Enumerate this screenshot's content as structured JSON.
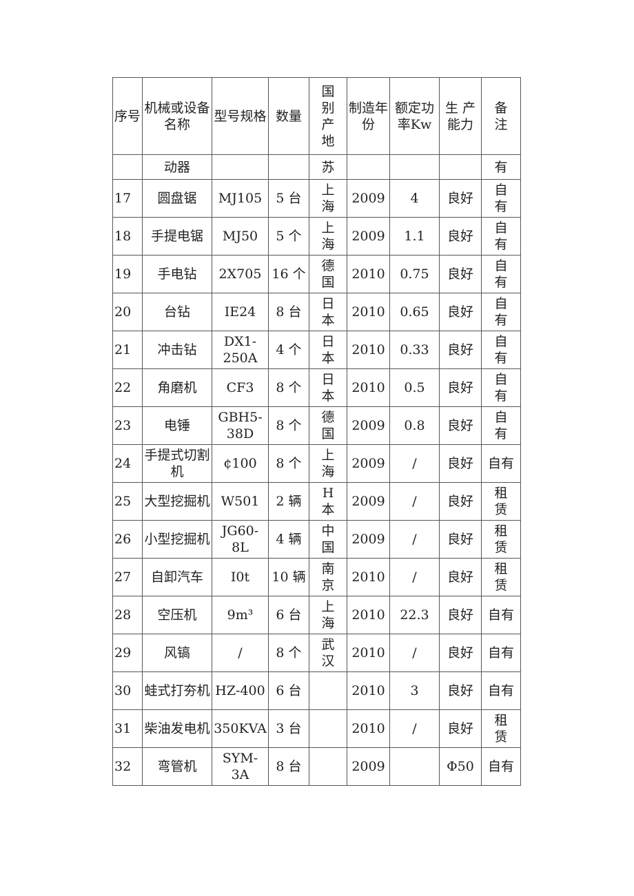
{
  "table": {
    "headers": [
      "序号",
      "机械或设备名称",
      "型号规格",
      "数量",
      "国别产地",
      "制造年份",
      "额定功率Kw",
      "生 产能力",
      "备注"
    ],
    "continuation": [
      "",
      "动器",
      "",
      "",
      "苏",
      "",
      "",
      "",
      "有"
    ],
    "rows": [
      [
        "17",
        "圆盘锯",
        "MJ105",
        "5 台",
        "上海",
        "2009",
        "4",
        "良好",
        "自有"
      ],
      [
        "18",
        "手提电锯",
        "MJ50",
        "5 个",
        "上海",
        "2009",
        "1.1",
        "良好",
        "自有"
      ],
      [
        "19",
        "手电钻",
        "2X705",
        "16 个",
        "德国",
        "2010",
        "0.75",
        "良好",
        "自有"
      ],
      [
        "20",
        "台钻",
        "IE24",
        "8 台",
        "日本",
        "2010",
        "0.65",
        "良好",
        "自有"
      ],
      [
        "21",
        "冲击钻",
        "DX1-250A",
        "4 个",
        "日本",
        "2010",
        "0.33",
        "良好",
        "自有"
      ],
      [
        "22",
        "角磨机",
        "CF3",
        "8 个",
        "日本",
        "2010",
        "0.5",
        "良好",
        "自有"
      ],
      [
        "23",
        "电锤",
        "GBH5-38D",
        "8 个",
        "德国",
        "2009",
        "0.8",
        "良好",
        "自有"
      ],
      [
        "24",
        "手提式切割机",
        "¢100",
        "8 个",
        "上海",
        "2009",
        "/",
        "良好",
        "自有"
      ],
      [
        "25",
        "大型挖掘机",
        "W501",
        "2 辆",
        "H本",
        "2009",
        "/",
        "良好",
        "租赁"
      ],
      [
        "26",
        "小型挖掘机",
        "JG60-8L",
        "4 辆",
        "中国",
        "2009",
        "/",
        "良好",
        "租赁"
      ],
      [
        "27",
        "自卸汽车",
        "I0t",
        "10 辆",
        "南京",
        "2010",
        "/",
        "良好",
        "租赁"
      ],
      [
        "28",
        "空压机",
        "9m³",
        "6 台",
        "上海",
        "2010",
        "22.3",
        "良好",
        "自有"
      ],
      [
        "29",
        "风镐",
        "/",
        "8 个",
        "武汉",
        "2010",
        "/",
        "良好",
        "自有"
      ],
      [
        "30",
        "蛙式打夯机",
        "HZ-400",
        "6 台",
        "",
        "2010",
        "3",
        "良好",
        "自有"
      ],
      [
        "31",
        "柴油发电机",
        "350KVA",
        "3 台",
        "",
        "2010",
        "/",
        "良好",
        "租赁"
      ],
      [
        "32",
        "弯管机",
        "SYM-3A",
        "8 台",
        "",
        "2009",
        "",
        "Φ50",
        "自有"
      ]
    ]
  }
}
